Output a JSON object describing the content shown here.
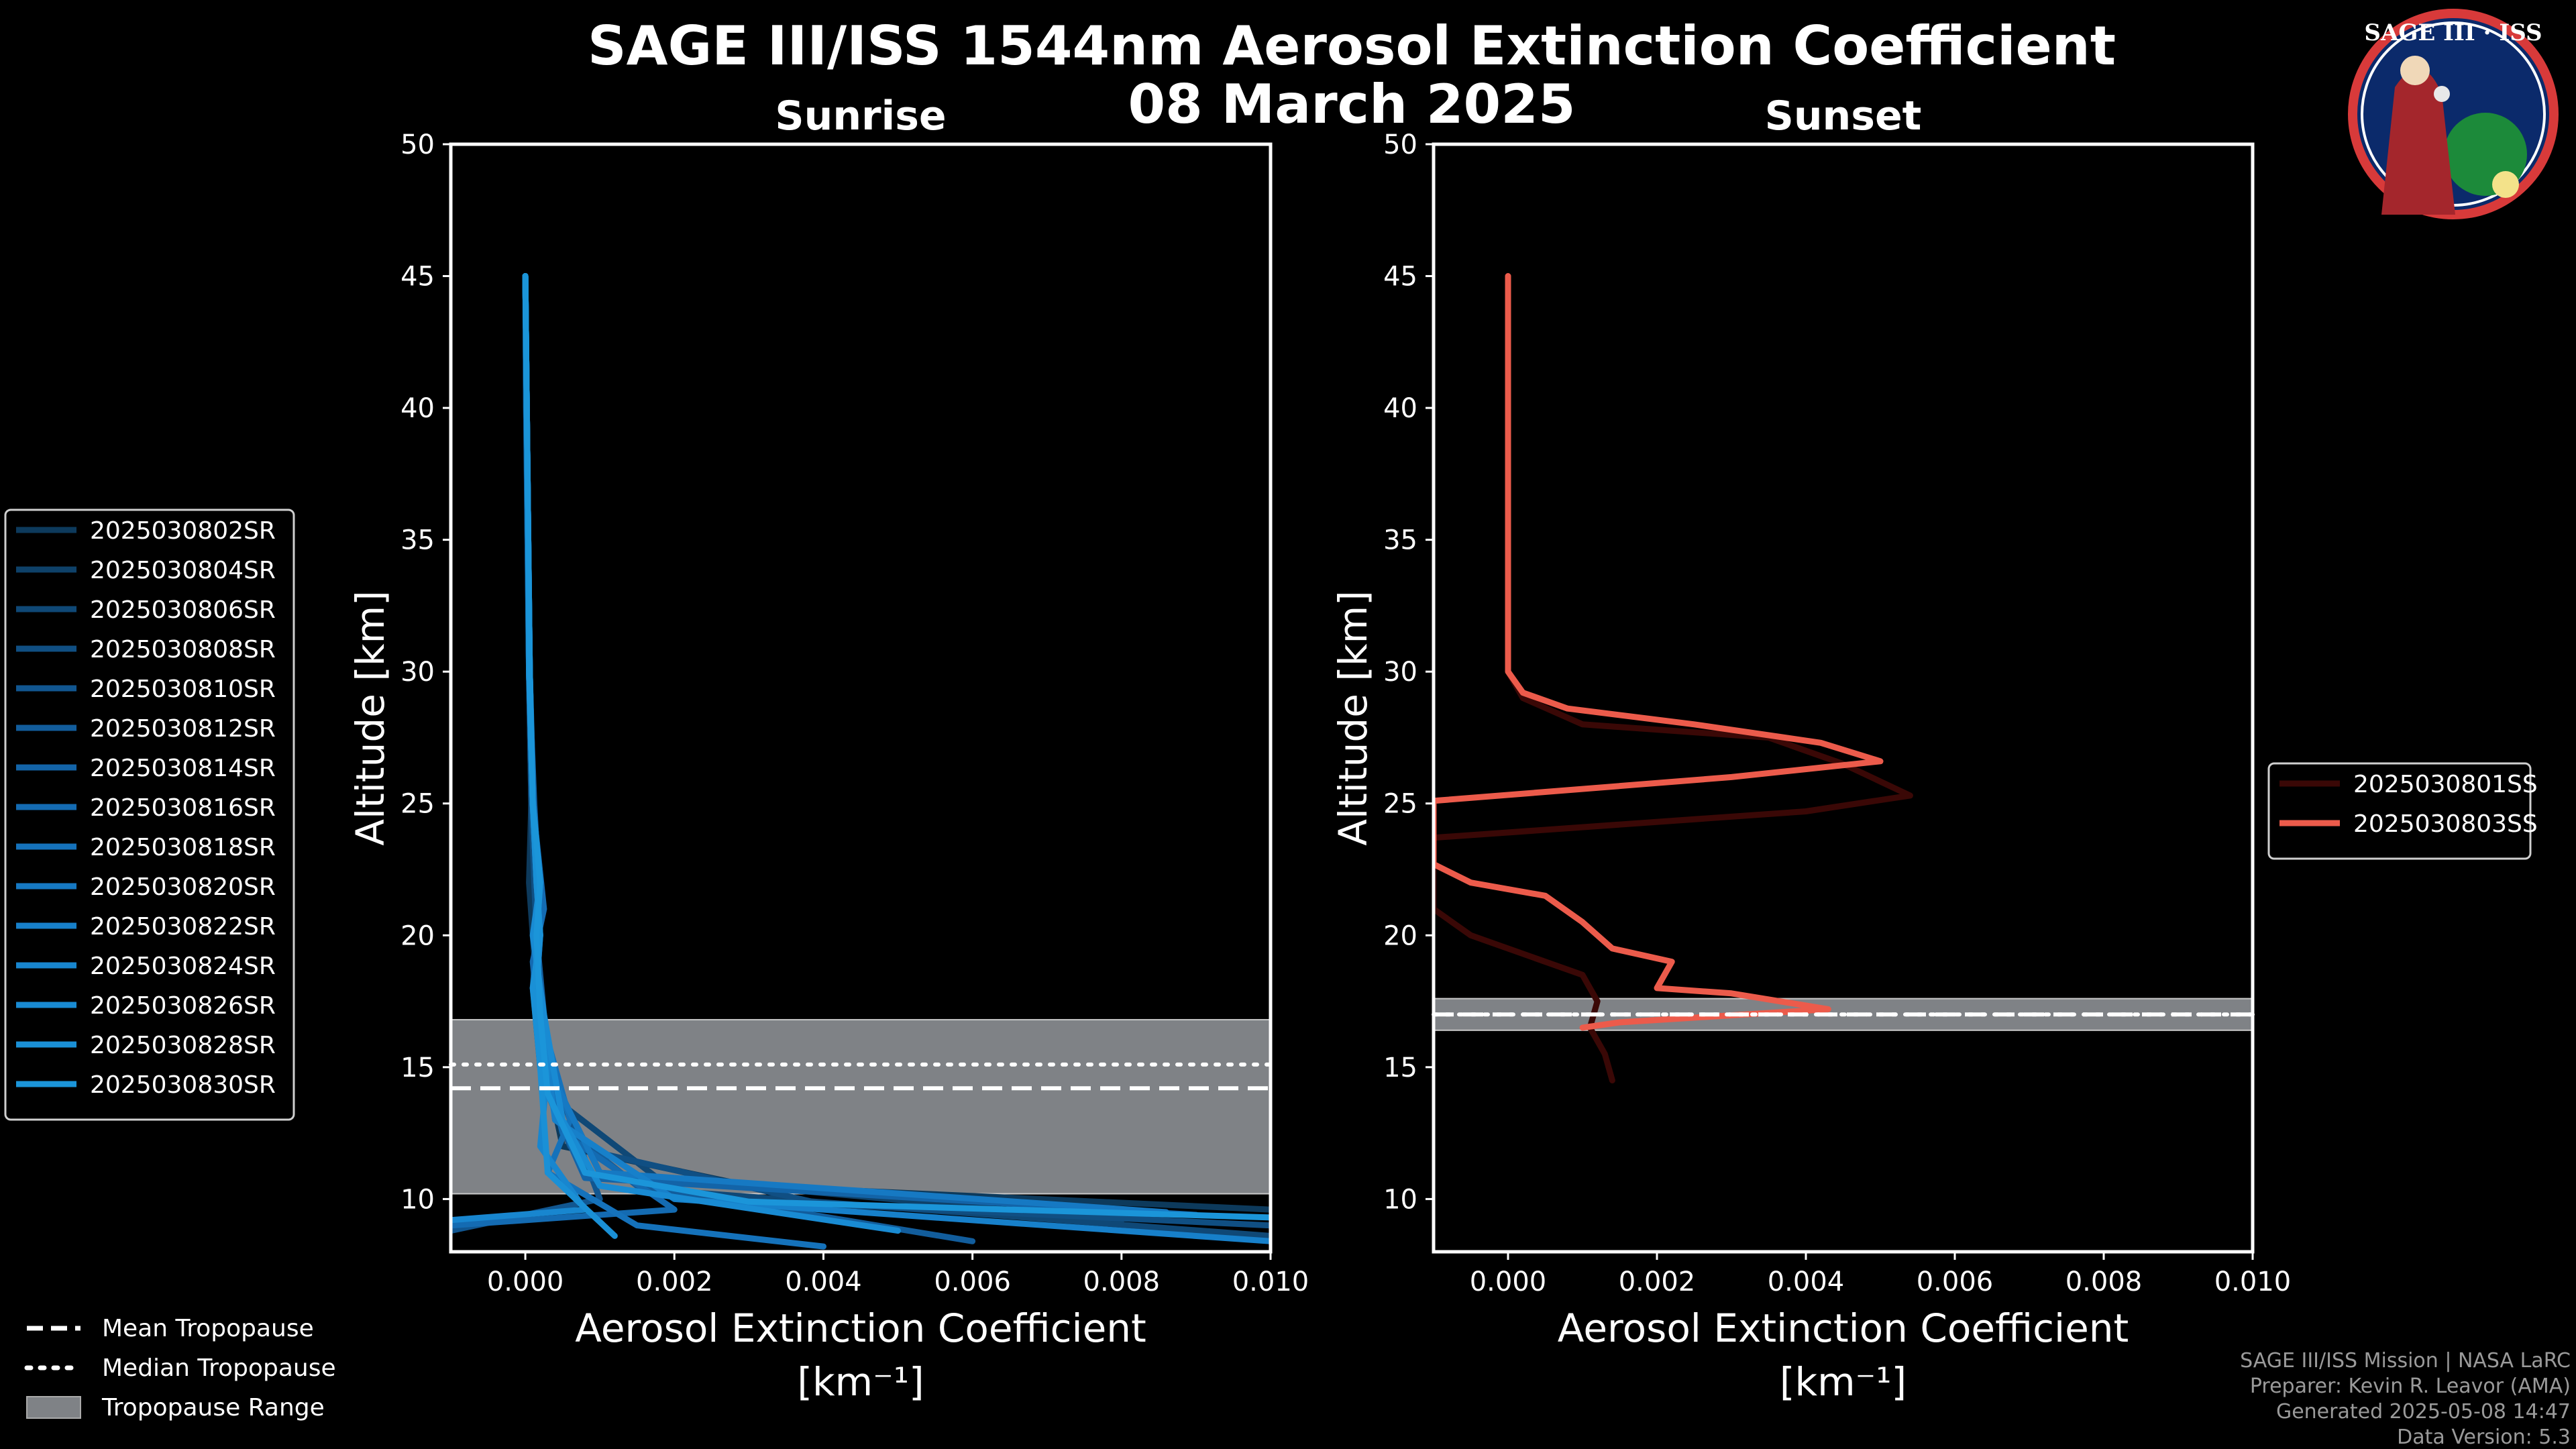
{
  "figure": {
    "title_line1": "SAGE III/ISS 1544nm Aerosol Extinction Coefficient",
    "title_line2": "08 March 2025",
    "logo": {
      "text": "SAGE III · ISS",
      "icon": "sage-iii-iss-mission-patch"
    },
    "credits": [
      "SAGE III/ISS Mission | NASA LaRC",
      "Preparer: Kevin R. Leavor (AMA)",
      "Generated 2025-05-08 14:47",
      "Data Version: 5.3"
    ],
    "tropopause_legend": [
      {
        "label": "Mean Tropopause",
        "style": "dashed"
      },
      {
        "label": "Median Tropopause",
        "style": "dotted"
      },
      {
        "label": "Tropopause Range",
        "style": "patch"
      }
    ]
  },
  "chart_data": [
    {
      "type": "line",
      "panel": "sunrise",
      "title": "Sunrise",
      "xlabel": "Aerosol Extinction Coefficient",
      "xlabel_units": "[km⁻¹]",
      "ylabel": "Altitude [km]",
      "xlim": [
        -0.001,
        0.01
      ],
      "ylim": [
        8,
        50
      ],
      "xticks": [
        0.0,
        0.002,
        0.004,
        0.006,
        0.008,
        0.01
      ],
      "xtick_labels": [
        "0.000",
        "0.002",
        "0.004",
        "0.006",
        "0.008",
        "0.010"
      ],
      "yticks": [
        10,
        15,
        20,
        25,
        30,
        35,
        40,
        45,
        50
      ],
      "tropopause": {
        "mean": 14.2,
        "median": 15.1,
        "range": [
          10.2,
          16.8
        ]
      },
      "legend_position": "left",
      "series": [
        {
          "name": "2025030802SR",
          "color": "#0d3a5c",
          "points": [
            [
              0.0,
              45
            ],
            [
              2e-05,
              40
            ],
            [
              4e-05,
              35
            ],
            [
              5e-05,
              30
            ],
            [
              8e-05,
              25
            ],
            [
              5e-05,
              22
            ],
            [
              0.0001,
              20
            ],
            [
              0.00015,
              18
            ],
            [
              0.0002,
              16
            ],
            [
              0.0005,
              12
            ],
            [
              0.003,
              10.5
            ],
            [
              0.01,
              9.6
            ]
          ]
        },
        {
          "name": "2025030804SR",
          "color": "#0e4169",
          "points": [
            [
              0.0,
              45
            ],
            [
              2e-05,
              40
            ],
            [
              4e-05,
              35
            ],
            [
              6e-05,
              30
            ],
            [
              0.0001,
              25
            ],
            [
              0.00015,
              22
            ],
            [
              0.00012,
              20
            ],
            [
              0.0002,
              18
            ],
            [
              0.0003,
              15
            ],
            [
              0.001,
              11
            ],
            [
              0.008,
              9.2
            ]
          ]
        },
        {
          "name": "2025030806SR",
          "color": "#0f4876",
          "points": [
            [
              0.0,
              45
            ],
            [
              2e-05,
              40
            ],
            [
              4e-05,
              35
            ],
            [
              5e-05,
              30
            ],
            [
              0.0001,
              25
            ],
            [
              0.0002,
              22
            ],
            [
              0.0001,
              20
            ],
            [
              0.0002,
              17
            ],
            [
              0.0003,
              14
            ],
            [
              0.002,
              10.3
            ],
            [
              0.01,
              8.6
            ]
          ]
        },
        {
          "name": "2025030808SR",
          "color": "#104f83",
          "points": [
            [
              0.0,
              45
            ],
            [
              2e-05,
              40
            ],
            [
              3e-05,
              35
            ],
            [
              5e-05,
              30
            ],
            [
              8e-05,
              25
            ],
            [
              0.00012,
              22
            ],
            [
              0.00015,
              20
            ],
            [
              0.0001,
              18
            ],
            [
              0.0002,
              15
            ],
            [
              0.0006,
              12
            ],
            [
              0.004,
              9.8
            ],
            [
              0.01,
              9.0
            ]
          ]
        },
        {
          "name": "2025030810SR",
          "color": "#115690",
          "points": [
            [
              0.0,
              45
            ],
            [
              2e-05,
              40
            ],
            [
              4e-05,
              35
            ],
            [
              6e-05,
              30
            ],
            [
              0.0001,
              25
            ],
            [
              0.0002,
              21
            ],
            [
              0.00015,
              19
            ],
            [
              0.0002,
              16
            ],
            [
              0.001,
              10
            ],
            [
              -0.001,
              8.8
            ]
          ]
        },
        {
          "name": "2025030812SR",
          "color": "#125d9c",
          "points": [
            [
              0.0,
              45
            ],
            [
              1e-05,
              40
            ],
            [
              3e-05,
              35
            ],
            [
              5e-05,
              30
            ],
            [
              0.00012,
              25
            ],
            [
              0.00018,
              22
            ],
            [
              0.00015,
              20
            ],
            [
              0.00025,
              17
            ],
            [
              0.0004,
              13
            ],
            [
              0.0015,
              10.5
            ],
            [
              0.006,
              8.4
            ]
          ]
        },
        {
          "name": "2025030814SR",
          "color": "#1364a8",
          "points": [
            [
              0.0,
              45
            ],
            [
              2e-05,
              40
            ],
            [
              4e-05,
              35
            ],
            [
              6e-05,
              30
            ],
            [
              0.0001,
              26
            ],
            [
              0.00015,
              23
            ],
            [
              0.0002,
              20
            ],
            [
              0.00015,
              18
            ],
            [
              0.0003,
              14
            ],
            [
              0.0008,
              10.8
            ],
            [
              0.009,
              9.4
            ]
          ]
        },
        {
          "name": "2025030816SR",
          "color": "#146bb2",
          "points": [
            [
              0.0,
              45
            ],
            [
              2e-05,
              40
            ],
            [
              4e-05,
              35
            ],
            [
              5e-05,
              30
            ],
            [
              0.0001,
              25
            ],
            [
              0.00025,
              21
            ],
            [
              0.0001,
              19
            ],
            [
              0.0002,
              16
            ],
            [
              0.0005,
              12.5
            ],
            [
              0.002,
              9.6
            ],
            [
              -0.001,
              9.0
            ]
          ]
        },
        {
          "name": "2025030818SR",
          "color": "#1572bb",
          "points": [
            [
              0.0,
              45
            ],
            [
              2e-05,
              40
            ],
            [
              4e-05,
              35
            ],
            [
              6e-05,
              30
            ],
            [
              0.0001,
              25
            ],
            [
              0.0002,
              22
            ],
            [
              0.00015,
              20
            ],
            [
              0.0002,
              17
            ],
            [
              0.0006,
              13
            ],
            [
              0.0003,
              11
            ],
            [
              0.0015,
              9.0
            ],
            [
              0.004,
              8.2
            ]
          ]
        },
        {
          "name": "2025030820SR",
          "color": "#1679c3",
          "points": [
            [
              0.0,
              45
            ],
            [
              2e-05,
              40
            ],
            [
              4e-05,
              35
            ],
            [
              5e-05,
              30
            ],
            [
              0.0001,
              25
            ],
            [
              0.00015,
              22
            ],
            [
              0.0002,
              20
            ],
            [
              0.0001,
              18
            ],
            [
              0.0003,
              15
            ],
            [
              0.001,
              11
            ],
            [
              0.0086,
              9.5
            ]
          ]
        },
        {
          "name": "2025030822SR",
          "color": "#1780ca",
          "points": [
            [
              0.0,
              45
            ],
            [
              2e-05,
              40
            ],
            [
              4e-05,
              35
            ],
            [
              6e-05,
              30
            ],
            [
              0.0001,
              25
            ],
            [
              0.0002,
              22
            ],
            [
              0.00015,
              20
            ],
            [
              0.0002,
              17
            ],
            [
              0.0004,
              13
            ],
            [
              0.002,
              10
            ],
            [
              0.01,
              8.4
            ]
          ]
        },
        {
          "name": "2025030824SR",
          "color": "#1886cf",
          "points": [
            [
              0.0,
              45
            ],
            [
              2e-05,
              40
            ],
            [
              4e-05,
              35
            ],
            [
              5e-05,
              30
            ],
            [
              0.0001,
              25
            ],
            [
              0.00015,
              22
            ],
            [
              0.0002,
              20
            ],
            [
              0.00015,
              18
            ],
            [
              0.0003,
              15
            ],
            [
              0.0002,
              12
            ],
            [
              0.0008,
              9.6
            ],
            [
              -0.001,
              9.2
            ]
          ]
        },
        {
          "name": "2025030826SR",
          "color": "#198bd3",
          "points": [
            [
              0.0,
              45
            ],
            [
              2e-05,
              40
            ],
            [
              4e-05,
              35
            ],
            [
              6e-05,
              30
            ],
            [
              0.0001,
              25
            ],
            [
              0.0002,
              22
            ],
            [
              0.0001,
              20
            ],
            [
              0.00025,
              17
            ],
            [
              0.0005,
              13
            ],
            [
              0.001,
              10.5
            ],
            [
              0.005,
              8.8
            ]
          ]
        },
        {
          "name": "2025030828SR",
          "color": "#1a90d6",
          "points": [
            [
              0.0,
              45
            ],
            [
              2e-05,
              40
            ],
            [
              4e-05,
              35
            ],
            [
              5e-05,
              30
            ],
            [
              0.0001,
              25
            ],
            [
              0.00015,
              22
            ],
            [
              0.0002,
              20
            ],
            [
              0.0001,
              18
            ],
            [
              0.0002,
              15
            ],
            [
              0.0003,
              11
            ],
            [
              0.0012,
              8.6
            ]
          ]
        },
        {
          "name": "2025030830SR",
          "color": "#1b95d9",
          "points": [
            [
              0.0,
              45
            ],
            [
              2e-05,
              40
            ],
            [
              4e-05,
              35
            ],
            [
              6e-05,
              30
            ],
            [
              0.0001,
              25
            ],
            [
              0.0002,
              22
            ],
            [
              0.00015,
              20
            ],
            [
              0.0002,
              17
            ],
            [
              0.0003,
              14
            ],
            [
              0.0008,
              11
            ],
            [
              0.003,
              9.9
            ],
            [
              0.01,
              9.3
            ]
          ]
        }
      ]
    },
    {
      "type": "line",
      "panel": "sunset",
      "title": "Sunset",
      "xlabel": "Aerosol Extinction Coefficient",
      "xlabel_units": "[km⁻¹]",
      "ylabel": "Altitude [km]",
      "xlim": [
        -0.001,
        0.01
      ],
      "ylim": [
        8,
        50
      ],
      "xticks": [
        0.0,
        0.002,
        0.004,
        0.006,
        0.008,
        0.01
      ],
      "xtick_labels": [
        "0.000",
        "0.002",
        "0.004",
        "0.006",
        "0.008",
        "0.010"
      ],
      "yticks": [
        10,
        15,
        20,
        25,
        30,
        35,
        40,
        45,
        50
      ],
      "tropopause": {
        "mean": 17.0,
        "median": 17.0,
        "range": [
          16.4,
          17.6
        ]
      },
      "legend_position": "right",
      "series": [
        {
          "name": "2025030801SS",
          "color": "#3a0806",
          "points": [
            [
              0.0,
              45
            ],
            [
              0.0,
              40
            ],
            [
              0.0,
              35
            ],
            [
              0.0,
              30
            ],
            [
              0.0002,
              29
            ],
            [
              0.001,
              28
            ],
            [
              0.0035,
              27.5
            ],
            [
              0.0045,
              26.5
            ],
            [
              0.0054,
              25.3
            ],
            [
              0.004,
              24.7
            ],
            [
              -0.001,
              23.7
            ],
            [
              -0.001,
              21
            ],
            [
              -0.0005,
              20
            ],
            [
              0.001,
              18.5
            ],
            [
              0.0012,
              17.5
            ],
            [
              0.0011,
              16.5
            ],
            [
              0.0013,
              15.5
            ],
            [
              0.0014,
              14.5
            ]
          ]
        },
        {
          "name": "2025030803SS",
          "color": "#ec5b4b",
          "points": [
            [
              0.0,
              45
            ],
            [
              0.0,
              40
            ],
            [
              0.0,
              35
            ],
            [
              0.0,
              30
            ],
            [
              0.0002,
              29.2
            ],
            [
              0.0008,
              28.6
            ],
            [
              0.0025,
              28.0
            ],
            [
              0.0042,
              27.3
            ],
            [
              0.005,
              26.6
            ],
            [
              0.003,
              26.0
            ],
            [
              -0.001,
              25.1
            ],
            [
              -0.001,
              22.7
            ],
            [
              -0.0005,
              22.0
            ],
            [
              0.0005,
              21.5
            ],
            [
              0.001,
              20.5
            ],
            [
              0.0014,
              19.5
            ],
            [
              0.0022,
              19.0
            ],
            [
              0.002,
              18.0
            ],
            [
              0.003,
              17.8
            ],
            [
              0.0043,
              17.2
            ],
            [
              0.0015,
              16.7
            ],
            [
              0.001,
              16.5
            ]
          ]
        }
      ]
    }
  ]
}
